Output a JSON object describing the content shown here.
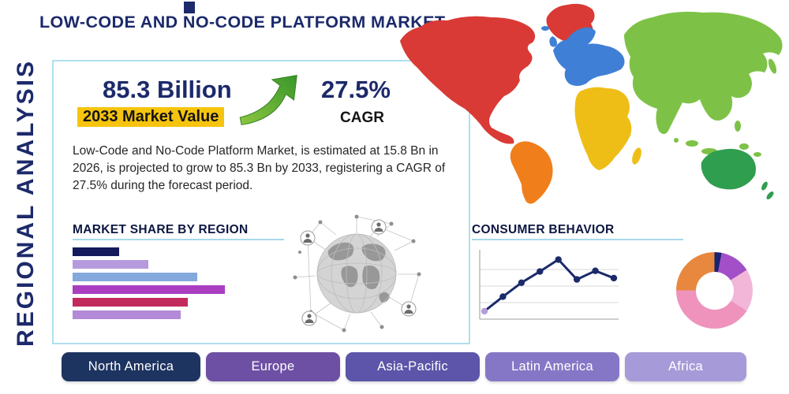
{
  "palette": {
    "navy": "#1c2a6b",
    "highlight": "#f6c40e",
    "underline": "#a6d9ea",
    "card-border": "#aee0ef",
    "arrow1": "#8cc63f",
    "arrow2": "#39962a"
  },
  "header": {
    "title": "LOW-CODE AND NO-CODE PLATFORM MARKET",
    "vertical_label": "REGIONAL ANALYSIS"
  },
  "stats": {
    "market_value": "85.3 Billion",
    "market_value_caption": "2033 Market Value",
    "cagr_value": "27.5%",
    "cagr_caption": "CAGR",
    "description": "Low-Code and No-Code Platform Market, is estimated at 15.8 Bn in 2026, is projected to grow to 85.3 Bn by 2033, registering a CAGR of 27.5% during the forecast period."
  },
  "region_buttons": [
    {
      "label": "North America",
      "color": "#1d3461"
    },
    {
      "label": "Europe",
      "color": "#6d4fa4"
    },
    {
      "label": "Asia-Pacific",
      "color": "#5c55a9"
    },
    {
      "label": "Latin America",
      "color": "#8677c6"
    },
    {
      "label": "Africa",
      "color": "#a79ad8"
    }
  ],
  "map_regions": [
    {
      "name": "north-america",
      "color": "#d93a35"
    },
    {
      "name": "south-america",
      "color": "#f07e1b"
    },
    {
      "name": "europe",
      "color": "#3f7fd6"
    },
    {
      "name": "africa",
      "color": "#eebe17"
    },
    {
      "name": "asia",
      "color": "#7dc246"
    },
    {
      "name": "oceania",
      "color": "#2f9e4f"
    }
  ],
  "chart_data": [
    {
      "type": "bar",
      "title": "MARKET SHARE BY REGION",
      "orientation": "horizontal",
      "categories": [
        "",
        "",
        "",
        "",
        "",
        ""
      ],
      "values": [
        29,
        47,
        77,
        94,
        71,
        67
      ],
      "xlim": [
        0,
        100
      ],
      "unit": "relative share (estimated from bar widths)",
      "colors": [
        "#141a5c",
        "#b79ade",
        "#84a9dc",
        "#a93ec1",
        "#c22a5e",
        "#b28ad8"
      ]
    },
    {
      "type": "line",
      "title": "CONSUMER BEHAVIOR",
      "x": [
        1,
        2,
        3,
        4,
        5,
        6,
        7,
        8
      ],
      "values": [
        12,
        34,
        55,
        72,
        90,
        60,
        73,
        62
      ],
      "ylim": [
        0,
        100
      ],
      "grid": true,
      "legend": "none",
      "line_color": "#1b2a6b",
      "first_point_color": "#b39ddb"
    },
    {
      "type": "pie",
      "donut": true,
      "title": "",
      "segments": [
        {
          "label": "segment-navy",
          "value": 3,
          "color": "#1a2470"
        },
        {
          "label": "segment-purple",
          "value": 13,
          "color": "#a24fc8"
        },
        {
          "label": "segment-light-pink",
          "value": 18,
          "color": "#f2b7d8"
        },
        {
          "label": "segment-pink",
          "value": 41,
          "color": "#ef93bc"
        },
        {
          "label": "segment-orange",
          "value": 25,
          "color": "#e8883f"
        }
      ]
    }
  ]
}
